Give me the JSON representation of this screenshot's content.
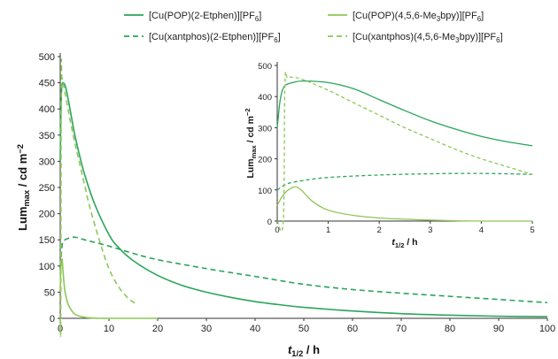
{
  "chart_data": [
    {
      "type": "line",
      "xlabel": "t1/2 / h",
      "ylabel": "Lummax / cd m-2",
      "xlim": [
        0,
        100
      ],
      "ylim": [
        0,
        500
      ],
      "xticks": [
        "0",
        "10",
        "20",
        "30",
        "40",
        "50",
        "60",
        "70",
        "80",
        "90",
        "100"
      ],
      "yticks": [
        "0",
        "50",
        "100",
        "150",
        "200",
        "250",
        "300",
        "350",
        "400",
        "450",
        "500"
      ],
      "grid": false,
      "legend": "top",
      "series": [
        {
          "name": "[Cu(POP)(2-Etphen)][PF6]",
          "color": "#2aa55a",
          "dash": false,
          "x": [
            0,
            0.15,
            0.3,
            0.5,
            1,
            1.5,
            2,
            3,
            4,
            5,
            7,
            10,
            12,
            15,
            20,
            25,
            30,
            35,
            40,
            45,
            50,
            60,
            70,
            80,
            90,
            100
          ],
          "y": [
            300,
            400,
            440,
            450,
            445,
            425,
            400,
            350,
            310,
            275,
            220,
            160,
            135,
            110,
            82,
            63,
            50,
            40,
            32,
            26,
            21,
            14,
            9,
            6,
            4,
            3
          ]
        },
        {
          "name": "[Cu(xantphos)(2-Etphen)][PF6]",
          "color": "#2aa55a",
          "dash": true,
          "x": [
            0,
            0.3,
            0.5,
            1,
            2,
            3,
            4,
            5,
            10,
            15,
            20,
            30,
            40,
            50,
            60,
            70,
            80,
            90,
            100
          ],
          "y": [
            100,
            130,
            145,
            150,
            154,
            155,
            153,
            150,
            138,
            124,
            112,
            95,
            80,
            65,
            55,
            48,
            42,
            36,
            30
          ]
        },
        {
          "name": "[Cu(POP)(4,5,6-Me3bpy)][PF6]",
          "color": "#8cc756",
          "dash": false,
          "x": [
            0,
            0.1,
            0.2,
            0.3,
            0.4,
            0.5,
            0.7,
            1,
            1.5,
            2,
            3,
            5,
            8,
            10,
            15,
            20
          ],
          "y": [
            50,
            90,
            105,
            112,
            112,
            100,
            75,
            50,
            30,
            20,
            8,
            2,
            0,
            0,
            0,
            0
          ]
        },
        {
          "name": "[Cu(xantphos)(4,5,6-Me3bpy)][PF6]",
          "color": "#8cc756",
          "dash": true,
          "x": [
            0,
            0.1,
            0.2,
            0.3,
            0.5,
            1,
            1.5,
            2,
            3,
            4,
            5,
            6,
            8,
            10,
            12,
            14,
            15.5
          ],
          "y": [
            0,
            0,
            460,
            462,
            455,
            430,
            405,
            380,
            335,
            295,
            255,
            215,
            150,
            95,
            60,
            38,
            28
          ]
        }
      ]
    },
    {
      "type": "line",
      "xlabel": "t1/2 / h",
      "ylabel": "Lummax / cd m-2",
      "xlim": [
        0,
        5
      ],
      "ylim": [
        0,
        500
      ],
      "xticks": [
        "0",
        "1",
        "2",
        "3",
        "4",
        "5"
      ],
      "yticks": [
        "0",
        "100",
        "200",
        "300",
        "400",
        "500"
      ],
      "grid": false,
      "series": [
        {
          "color": "#2aa55a",
          "dash": false,
          "x": [
            0,
            0.05,
            0.1,
            0.15,
            0.2,
            0.3,
            0.5,
            1,
            1.5,
            2,
            2.5,
            3,
            3.5,
            4,
            4.5,
            5
          ],
          "y": [
            300,
            380,
            420,
            435,
            440,
            445,
            450,
            445,
            425,
            390,
            355,
            322,
            295,
            272,
            255,
            242
          ]
        },
        {
          "color": "#2aa55a",
          "dash": true,
          "x": [
            0,
            0.2,
            0.5,
            1,
            2,
            3,
            4,
            5
          ],
          "y": [
            100,
            120,
            130,
            140,
            148,
            152,
            153,
            150
          ]
        },
        {
          "color": "#8cc756",
          "dash": false,
          "x": [
            0,
            0.1,
            0.2,
            0.3,
            0.35,
            0.4,
            0.5,
            0.7,
            1,
            1.5,
            2,
            2.5,
            3,
            3.5,
            4,
            5
          ],
          "y": [
            50,
            80,
            98,
            108,
            110,
            108,
            95,
            62,
            35,
            18,
            10,
            6,
            3,
            1,
            0,
            0
          ]
        },
        {
          "color": "#8cc756",
          "dash": true,
          "x": [
            0,
            0.12,
            0.15,
            0.2,
            0.3,
            0.5,
            1,
            1.5,
            2,
            2.5,
            3,
            3.5,
            4,
            4.5,
            5
          ],
          "y": [
            0,
            0,
            440,
            460,
            462,
            455,
            420,
            380,
            340,
            300,
            265,
            230,
            200,
            175,
            150
          ]
        }
      ]
    }
  ]
}
